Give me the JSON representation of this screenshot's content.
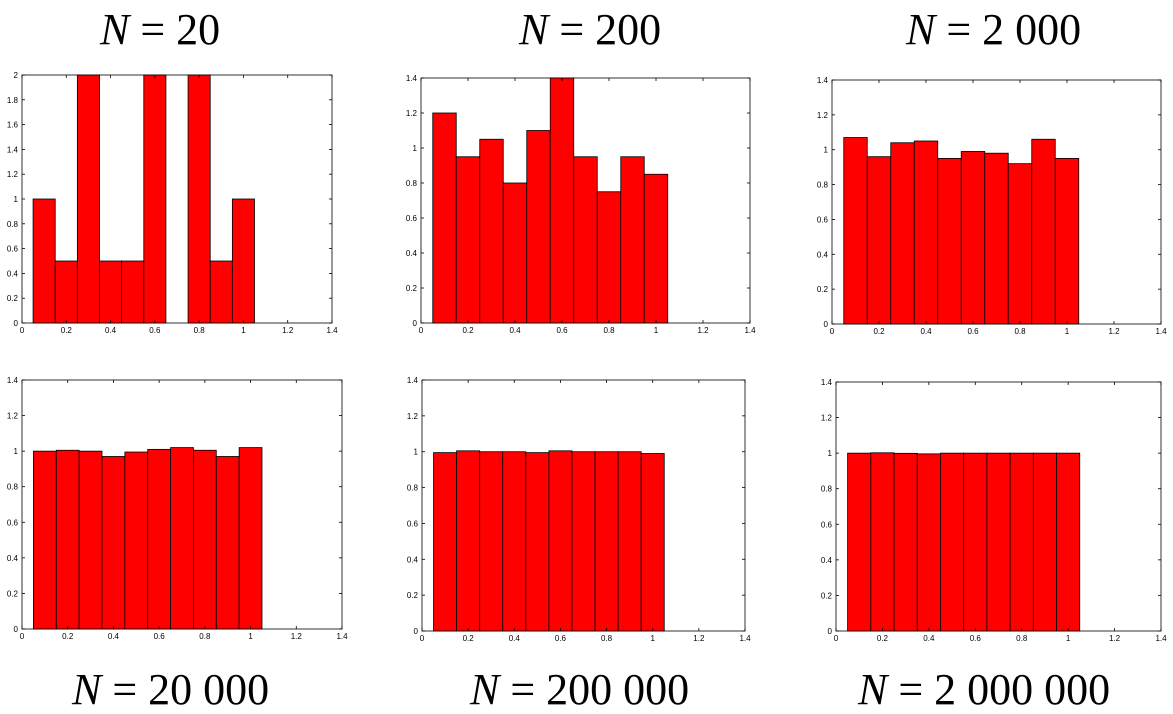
{
  "chart_data": [
    {
      "type": "bar",
      "title_var": "N",
      "title_rest": " = 20",
      "bin_edges": [
        0.05,
        0.15,
        0.25,
        0.35,
        0.45,
        0.55,
        0.65,
        0.75,
        0.85,
        0.95,
        1.05
      ],
      "values": [
        1,
        0.5,
        2,
        0.5,
        0.5,
        2,
        0,
        2,
        0.5,
        1
      ],
      "xlim": [
        0,
        1.4
      ],
      "ylim": [
        0,
        2
      ],
      "xticks": [
        "0",
        "0.2",
        "0.4",
        "0.6",
        "0.8",
        "1",
        "1.2",
        "1.4"
      ],
      "yticks": [
        "0",
        "0.2",
        "0.4",
        "0.6",
        "0.8",
        "1",
        "1.2",
        "1.4",
        "1.6",
        "1.8",
        "2"
      ],
      "bar_color": "#ff0000"
    },
    {
      "type": "bar",
      "title_var": "N",
      "title_rest": " = 200",
      "bin_edges": [
        0.05,
        0.15,
        0.25,
        0.35,
        0.45,
        0.55,
        0.65,
        0.75,
        0.85,
        0.95,
        1.05
      ],
      "values": [
        1.2,
        0.95,
        1.05,
        0.8,
        1.1,
        1.4,
        0.95,
        0.75,
        0.95,
        0.85
      ],
      "xlim": [
        0,
        1.4
      ],
      "ylim": [
        0,
        1.4
      ],
      "xticks": [
        "0",
        "0.2",
        "0.4",
        "0.6",
        "0.8",
        "1",
        "1.2",
        "1.4"
      ],
      "yticks": [
        "0",
        "0.2",
        "0.4",
        "0.6",
        "0.8",
        "1",
        "1.2",
        "1.4"
      ],
      "bar_color": "#ff0000"
    },
    {
      "type": "bar",
      "title_var": "N",
      "title_rest": " = 2 000",
      "bin_edges": [
        0.05,
        0.15,
        0.25,
        0.35,
        0.45,
        0.55,
        0.65,
        0.75,
        0.85,
        0.95,
        1.05
      ],
      "values": [
        1.07,
        0.96,
        1.04,
        1.05,
        0.95,
        0.99,
        0.98,
        0.92,
        1.06,
        0.95
      ],
      "xlim": [
        0,
        1.4
      ],
      "ylim": [
        0,
        1.4
      ],
      "xticks": [
        "0",
        "0.2",
        "0.4",
        "0.6",
        "0.8",
        "1",
        "1.2",
        "1.4"
      ],
      "yticks": [
        "0",
        "0.2",
        "0.4",
        "0.6",
        "0.8",
        "1",
        "1.2",
        "1.4"
      ],
      "bar_color": "#ff0000"
    },
    {
      "type": "bar",
      "title_var": "N",
      "title_rest": " = 20 000",
      "bin_edges": [
        0.05,
        0.15,
        0.25,
        0.35,
        0.45,
        0.55,
        0.65,
        0.75,
        0.85,
        0.95,
        1.05
      ],
      "values": [
        1.0,
        1.005,
        1.0,
        0.97,
        0.995,
        1.01,
        1.02,
        1.005,
        0.97,
        1.02
      ],
      "xlim": [
        0,
        1.4
      ],
      "ylim": [
        0,
        1.4
      ],
      "xticks": [
        "0",
        "0.2",
        "0.4",
        "0.6",
        "0.8",
        "1",
        "1.2",
        "1.4"
      ],
      "yticks": [
        "0",
        "0.2",
        "0.4",
        "0.6",
        "0.8",
        "1",
        "1.2",
        "1.4"
      ],
      "bar_color": "#ff0000"
    },
    {
      "type": "bar",
      "title_var": "N",
      "title_rest": " = 200 000",
      "bin_edges": [
        0.05,
        0.15,
        0.25,
        0.35,
        0.45,
        0.55,
        0.65,
        0.75,
        0.85,
        0.95,
        1.05
      ],
      "values": [
        0.995,
        1.005,
        1.0,
        1.0,
        0.995,
        1.005,
        1.0,
        1.0,
        1.0,
        0.99
      ],
      "xlim": [
        0,
        1.4
      ],
      "ylim": [
        0,
        1.4
      ],
      "xticks": [
        "0",
        "0.2",
        "0.4",
        "0.6",
        "0.8",
        "1",
        "1.2",
        "1.4"
      ],
      "yticks": [
        "0",
        "0.2",
        "0.4",
        "0.6",
        "0.8",
        "1",
        "1.2",
        "1.4"
      ],
      "bar_color": "#ff0000"
    },
    {
      "type": "bar",
      "title_var": "N",
      "title_rest": " = 2 000 000",
      "bin_edges": [
        0.05,
        0.15,
        0.25,
        0.35,
        0.45,
        0.55,
        0.65,
        0.75,
        0.85,
        0.95,
        1.05
      ],
      "values": [
        1.0,
        1.002,
        0.999,
        0.996,
        1.0,
        1.0,
        1.0,
        1.0,
        1.0,
        1.0
      ],
      "xlim": [
        0,
        1.4
      ],
      "ylim": [
        0,
        1.4
      ],
      "xticks": [
        "0",
        "0.2",
        "0.4",
        "0.6",
        "0.8",
        "1",
        "1.2",
        "1.4"
      ],
      "yticks": [
        "0",
        "0.2",
        "0.4",
        "0.6",
        "0.8",
        "1",
        "1.2",
        "1.4"
      ],
      "bar_color": "#ff0000"
    }
  ]
}
